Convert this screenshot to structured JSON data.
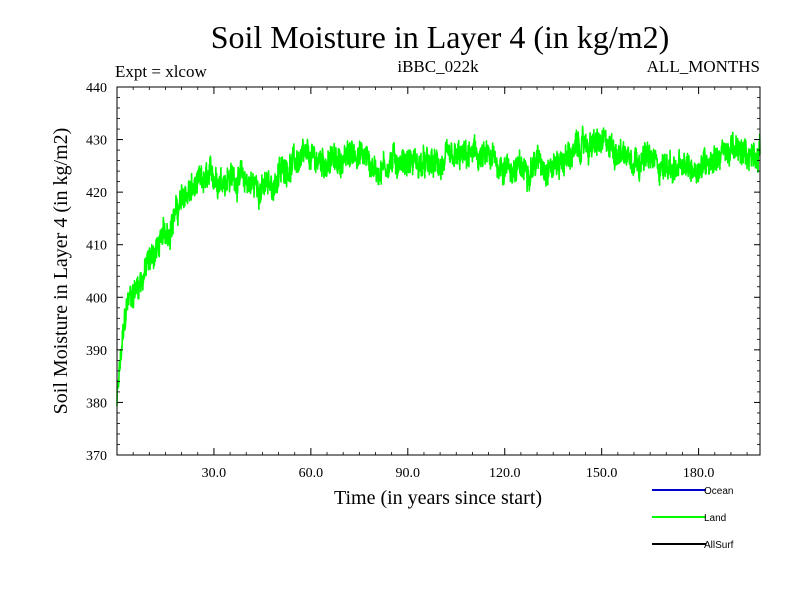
{
  "chart_data": {
    "type": "line",
    "title": "Soil Moisture in Layer 4 (in kg/m2)",
    "subtitle_left": "Expt = xlcow",
    "subtitle_center": "iBBC_022k",
    "subtitle_right": "ALL_MONTHS",
    "xlabel": "Time (in years since start)",
    "ylabel": "Soil Moisture in Layer 4 (in kg/m2)",
    "xlim": [
      0,
      199
    ],
    "ylim": [
      370,
      440
    ],
    "xticks": [
      30,
      60,
      90,
      120,
      150,
      180
    ],
    "xtick_labels": [
      "30.0",
      "60.0",
      "90.0",
      "120.0",
      "150.0",
      "180.0"
    ],
    "yticks": [
      370,
      380,
      390,
      400,
      410,
      420,
      430,
      440
    ],
    "ytick_labels": [
      "370",
      "380",
      "390",
      "400",
      "410",
      "420",
      "430",
      "440"
    ],
    "grid": false,
    "legend_position": "bottom-right",
    "series": [
      {
        "name": "Ocean",
        "color": "#0000cc",
        "x": [],
        "y": []
      },
      {
        "name": "Land",
        "color": "#00ff00",
        "x": [
          0,
          1,
          2,
          3,
          4,
          6,
          8,
          10,
          12,
          14,
          16,
          18,
          20,
          22,
          25,
          28,
          30,
          33,
          36,
          40,
          44,
          48,
          52,
          56,
          60,
          65,
          70,
          74,
          78,
          80,
          85,
          90,
          95,
          100,
          105,
          110,
          115,
          120,
          125,
          130,
          135,
          140,
          145,
          150,
          155,
          160,
          165,
          170,
          175,
          180,
          185,
          190,
          195,
          199
        ],
        "y": [
          380,
          387,
          393,
          398,
          400,
          402,
          404,
          407,
          409,
          411,
          413,
          416,
          418,
          420,
          421,
          422,
          423,
          423,
          423,
          422,
          421,
          421,
          425,
          426,
          426,
          426,
          426,
          428,
          426,
          424,
          426,
          426,
          425,
          425,
          426,
          427,
          426,
          425,
          424,
          426,
          425,
          427,
          429,
          429,
          428,
          427,
          426,
          425,
          424,
          425,
          427,
          428,
          427,
          428
        ],
        "noise_amplitude": 3.5
      },
      {
        "name": "AllSurf",
        "color": "#000000",
        "x": [],
        "y": []
      }
    ]
  }
}
